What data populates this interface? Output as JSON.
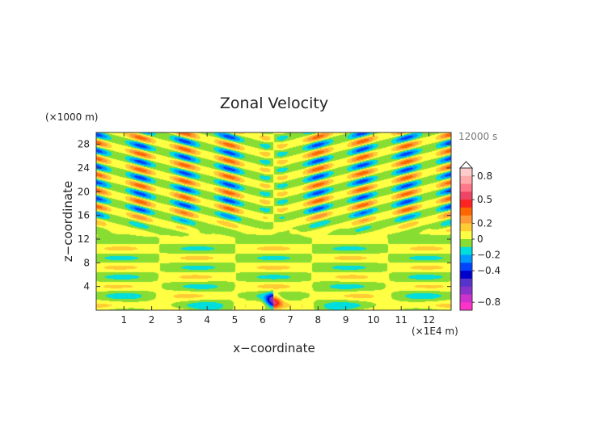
{
  "chart_data": {
    "type": "heatmap",
    "title": "Zonal Velocity",
    "xlabel": "x−coordinate",
    "ylabel": "z−coordinate",
    "x_unit": "(×1E4 m)",
    "y_unit": "(×1000 m)",
    "time_label": "12000 s",
    "xlim": [
      0,
      12.8
    ],
    "ylim": [
      0,
      30
    ],
    "x_ticks": [
      1,
      2,
      3,
      4,
      5,
      6,
      7,
      8,
      9,
      10,
      11,
      12
    ],
    "x_tick_labels": [
      "1",
      "2",
      "3",
      "4",
      "5",
      "6",
      "7",
      "8",
      "9",
      "10",
      "11",
      "12"
    ],
    "y_ticks": [
      4,
      8,
      12,
      16,
      20,
      24,
      28
    ],
    "y_tick_labels": [
      "4",
      "8",
      "12",
      "16",
      "20",
      "24",
      "28"
    ],
    "colorbar": {
      "levels": [
        -1.0,
        -0.8,
        -0.7,
        -0.6,
        -0.5,
        -0.4,
        -0.3,
        -0.2,
        -0.1,
        0.0,
        0.1,
        0.2,
        0.3,
        0.4,
        0.5,
        0.6,
        0.7,
        0.8,
        1.0
      ],
      "colors": [
        "#ff33cc",
        "#cc33cc",
        "#8833cc",
        "#5533cc",
        "#0000cc",
        "#0044ff",
        "#0099ff",
        "#00dddd",
        "#88dd33",
        "#ffff44",
        "#ffcc33",
        "#ff9933",
        "#ff6600",
        "#ff2222",
        "#ee4466",
        "#ff7788",
        "#ffaaaa",
        "#ffcccc"
      ],
      "tick_values": [
        0.8,
        0.5,
        0.2,
        0.0,
        -0.2,
        -0.4,
        -0.8
      ],
      "tick_labels": [
        "0.8",
        "0.5",
        "0.2",
        "0",
        "−0.2",
        "−0.4",
        "−0.8"
      ]
    },
    "field_features": [
      {
        "type": "source_dipole",
        "x": 6.4,
        "z": 1.5,
        "value_left": -0.7,
        "value_right": 0.5
      },
      {
        "type": "wave_bands",
        "z_range": [
          12,
          30
        ],
        "amplitude": 0.35,
        "pattern": "symmetric about x=6.4"
      },
      {
        "type": "low_level_bands",
        "z_range": [
          0,
          12
        ],
        "amplitude": 0.12
      }
    ]
  },
  "colors": {
    "background": "#ffffff",
    "axis": "#333333",
    "time_label": "#777777"
  }
}
